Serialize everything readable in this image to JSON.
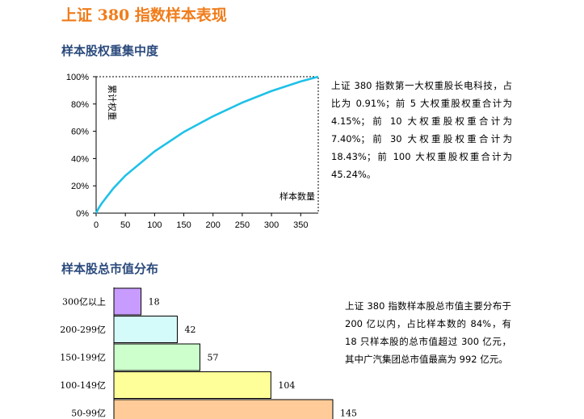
{
  "page_title": "上证 380 指数样本表现",
  "section1": {
    "title": "样本股权重集中度",
    "paragraph": "上证 380 指数第一大权重股长电科技，占比为 0.91%；前 5 大权重股权重合计为 4.15%；前 10 大权重股权重合计为 7.40%；前 30 大权重股权重合计为 18.43%；前 100 大权重股权重合计为 45.24%。"
  },
  "section2": {
    "title": "样本股总市值分布",
    "paragraph": "上证 380 指数样本股总市值主要分布于 200 亿以内，占比样本数的 84%，有 18 只样本股的总市值超过 300 亿元，其中广汽集团总市值最高为 992 亿元。"
  },
  "chart_data": [
    {
      "type": "line",
      "ylabel": "累计权重",
      "xlabel": "样本数量",
      "xlim": [
        0,
        380
      ],
      "ylim": [
        0,
        100
      ],
      "x_ticks": [
        "0",
        "50",
        "100",
        "150",
        "200",
        "250",
        "300",
        "350"
      ],
      "y_ticks": [
        "0%",
        "20%",
        "40%",
        "60%",
        "80%",
        "100%"
      ],
      "x": [
        0,
        1,
        5,
        10,
        30,
        50,
        100,
        150,
        200,
        250,
        300,
        350,
        380
      ],
      "values": [
        0,
        0.91,
        4.15,
        7.4,
        18.43,
        27.5,
        45.24,
        59.5,
        71.0,
        81.0,
        89.5,
        96.5,
        100
      ],
      "color": "#1fc1e8",
      "grid": false
    },
    {
      "type": "bar",
      "orientation": "horizontal",
      "categories": [
        "300亿以上",
        "200-299亿",
        "150-199亿",
        "100-149亿",
        "50-99亿"
      ],
      "values": [
        18,
        42,
        57,
        104,
        145
      ],
      "colors": [
        "#c89bff",
        "#d4fafa",
        "#ccffcc",
        "#ffff99",
        "#ffcc99"
      ]
    }
  ]
}
